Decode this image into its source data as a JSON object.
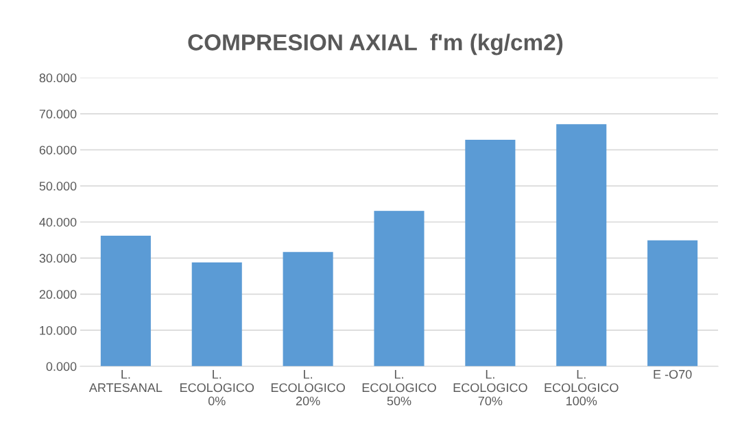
{
  "chart_data": {
    "type": "bar",
    "title": "COMPRESION AXIAL  f'm (kg/cm2)",
    "categories": [
      "L.\nARTESANAL",
      "L.\nECOLOGICO\n0%",
      "L.\nECOLOGICO\n20%",
      "L.\nECOLOGICO\n50%",
      "L.\nECOLOGICO\n70%",
      "L.\nECOLOGICO\n100%",
      "E -O70"
    ],
    "values": [
      36.2,
      28.8,
      31.7,
      43.1,
      62.8,
      67.1,
      34.9
    ],
    "color": "#5b9bd5",
    "ylim": [
      0,
      80
    ],
    "yticks": [
      {
        "value": 0,
        "label": "0.000"
      },
      {
        "value": 10,
        "label": "10.000"
      },
      {
        "value": 20,
        "label": "20.000"
      },
      {
        "value": 30,
        "label": "30.000"
      },
      {
        "value": 40,
        "label": "40.000"
      },
      {
        "value": 50,
        "label": "50.000"
      },
      {
        "value": 60,
        "label": "60.000"
      },
      {
        "value": 70,
        "label": "70.000"
      },
      {
        "value": 80,
        "label": "80.000"
      }
    ],
    "grid": "y"
  }
}
